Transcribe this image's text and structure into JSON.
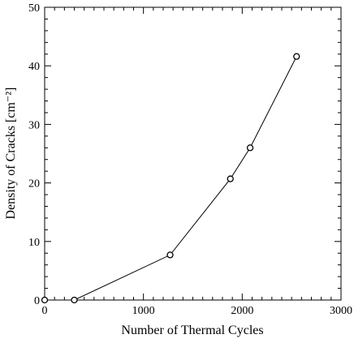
{
  "chart_data": {
    "type": "line",
    "xlabel": "Number of Thermal Cycles",
    "ylabel": "Density of Cracks [cm⁻²]",
    "xlim": [
      0,
      3000
    ],
    "ylim": [
      0,
      50
    ],
    "xticks": [
      0,
      1000,
      2000,
      3000
    ],
    "yticks": [
      0,
      10,
      20,
      30,
      40,
      50
    ],
    "x_minor_step": 100,
    "y_minor_step": 2,
    "grid": false,
    "marker": "open-circle",
    "line_color": "#000000",
    "series": [
      {
        "x": [
          0,
          300,
          1270,
          1880,
          2080,
          2550
        ],
        "y": [
          0,
          0,
          7.7,
          20.7,
          26.0,
          41.6
        ]
      }
    ]
  }
}
